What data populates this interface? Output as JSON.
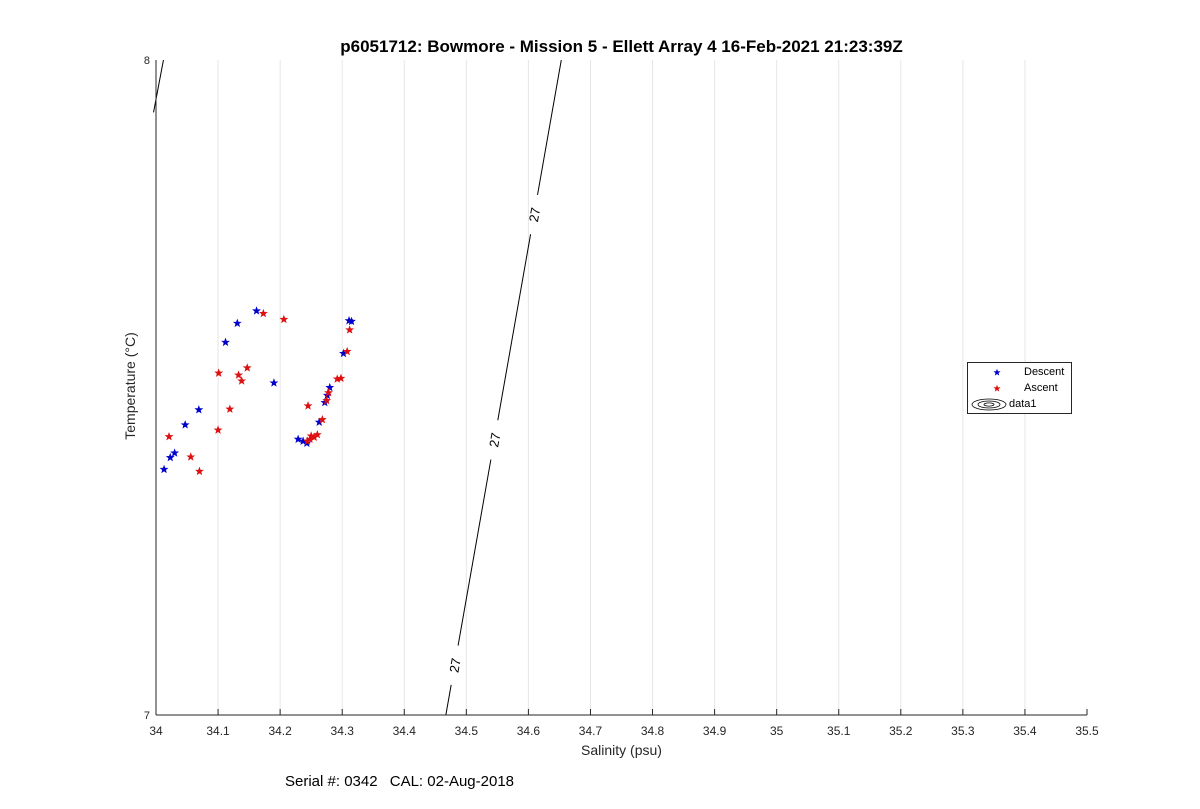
{
  "chart_data": {
    "type": "scatter",
    "title": "p6051712: Bowmore - Mission 5 - Ellett Array 4 16-Feb-2021 21:23:39Z",
    "xlabel": "Salinity (psu)",
    "ylabel": "Temperature (°C)",
    "xlim": [
      34,
      35.5
    ],
    "ylim": [
      7,
      8
    ],
    "xticks": [
      "34",
      "34.1",
      "34.2",
      "34.3",
      "34.4",
      "34.5",
      "34.6",
      "34.7",
      "34.8",
      "34.9",
      "35",
      "35.1",
      "35.2",
      "35.3",
      "35.4",
      "35.5"
    ],
    "yticks": [
      "7",
      "8"
    ],
    "grid": "x",
    "legend_placement": "right",
    "series": [
      {
        "name": "Descent",
        "color": "#0000cc",
        "marker": "pentagram",
        "x": [
          34.013,
          34.023,
          34.03,
          34.047,
          34.069,
          34.112,
          34.131,
          34.162,
          34.19,
          34.229,
          34.237,
          34.243,
          34.263,
          34.272,
          34.276,
          34.28,
          34.302,
          34.311,
          34.315
        ],
        "y": [
          7.375,
          7.393,
          7.4,
          7.443,
          7.466,
          7.569,
          7.598,
          7.617,
          7.507,
          7.421,
          7.418,
          7.415,
          7.447,
          7.477,
          7.488,
          7.5,
          7.552,
          7.602,
          7.601
        ]
      },
      {
        "name": "Ascent",
        "color": "#dd1111",
        "marker": "pentagram",
        "x": [
          34.021,
          34.056,
          34.07,
          34.1,
          34.101,
          34.119,
          34.133,
          34.138,
          34.147,
          34.173,
          34.206,
          34.245,
          34.244,
          34.248,
          34.25,
          34.255,
          34.26,
          34.268,
          34.275,
          34.278,
          34.292,
          34.298,
          34.308,
          34.312
        ],
        "y": [
          7.425,
          7.394,
          7.372,
          7.435,
          7.522,
          7.467,
          7.519,
          7.51,
          7.53,
          7.613,
          7.604,
          7.472,
          7.418,
          7.421,
          7.426,
          7.424,
          7.428,
          7.451,
          7.48,
          7.492,
          7.513,
          7.514,
          7.555,
          7.588
        ]
      }
    ],
    "contour": {
      "name": "data1",
      "level_label": "27",
      "line": [
        [
          34.467,
          7
        ],
        [
          34.653,
          8
        ]
      ],
      "line2": [
        [
          33.996,
          7.92
        ],
        [
          34.012,
          8
        ]
      ]
    }
  },
  "legend": {
    "descent": "Descent",
    "ascent": "Ascent",
    "contour": "data1"
  },
  "footer": {
    "serial": "Serial #: 0342",
    "cal": "CAL: 02-Aug-2018"
  },
  "colors": {
    "descent": "#0000cc",
    "ascent": "#dd1111",
    "grid": "#e6e6e6",
    "axis": "#262626"
  }
}
